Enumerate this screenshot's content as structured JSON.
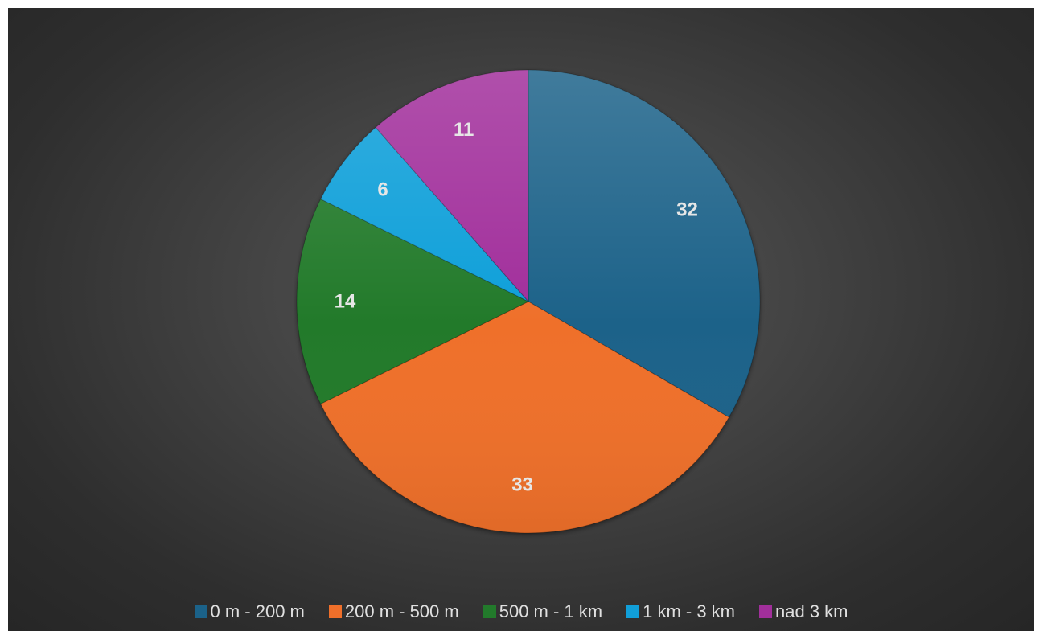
{
  "chart_data": {
    "type": "pie",
    "title": "",
    "categories": [
      "0 m - 200 m",
      "200 m - 500 m",
      "500 m - 1 km",
      "1 km - 3 km",
      "nad 3 km"
    ],
    "values": [
      32,
      33,
      14,
      6,
      11
    ],
    "data_labels": [
      "32",
      "33",
      "14",
      "6",
      "11"
    ],
    "colors": [
      "#1b6289",
      "#ef6f2a",
      "#227a2b",
      "#119fd9",
      "#a12f9b"
    ],
    "legend_position": "bottom",
    "start_angle": "12 o'clock",
    "direction": "clockwise"
  }
}
